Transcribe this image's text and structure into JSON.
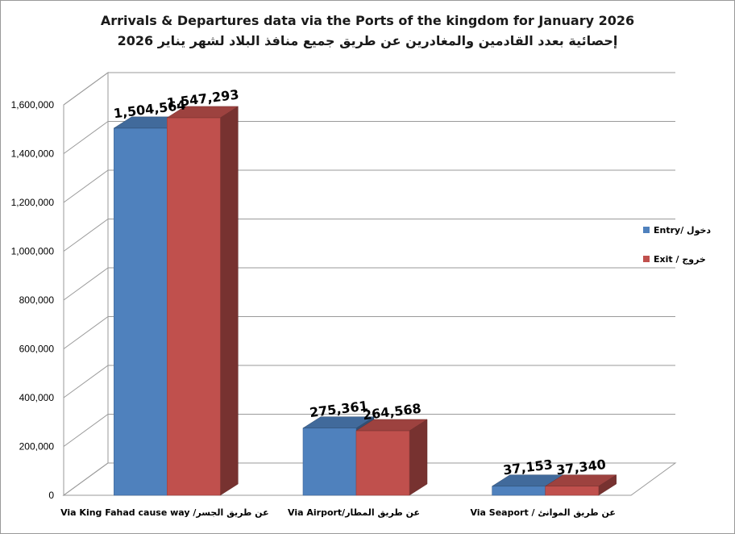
{
  "chart_data": {
    "type": "bar",
    "title": "Arrivals & Departures data via the Ports of the kingdom for January 2026",
    "subtitle": "إحصائية بعدد القادمين والمغادرين عن طريق جميع منافذ البلاد لشهر يناير 2026",
    "xlabel": "",
    "ylabel": "",
    "categories": [
      "Via King Fahad cause way /عن طريق الجسر",
      "Via Airport/عن طريق المطار",
      "Via Seaport / عن طريق الموانئ"
    ],
    "series": [
      {
        "name": "Entry/ دخول",
        "color": "#4F81BD",
        "values": [
          1504564,
          275361,
          37153
        ]
      },
      {
        "name": "Exit / خروج",
        "color": "#C0504D",
        "values": [
          1547293,
          264568,
          37340
        ]
      }
    ],
    "data_labels": [
      [
        "1,504,564",
        "275,361",
        "37,153"
      ],
      [
        "1,547,293",
        "264,568",
        "37,340"
      ]
    ],
    "ylim": [
      0,
      1600000
    ],
    "yticks": [
      0,
      200000,
      400000,
      600000,
      800000,
      1000000,
      1200000,
      1400000,
      1600000
    ],
    "ytick_labels": [
      "0",
      "200,000",
      "400,000",
      "600,000",
      "800,000",
      "1,000,000",
      "1,200,000",
      "1,400,000",
      "1,600,000"
    ],
    "grid": true,
    "legend_position": "right",
    "style": "3d-clustered-column"
  }
}
